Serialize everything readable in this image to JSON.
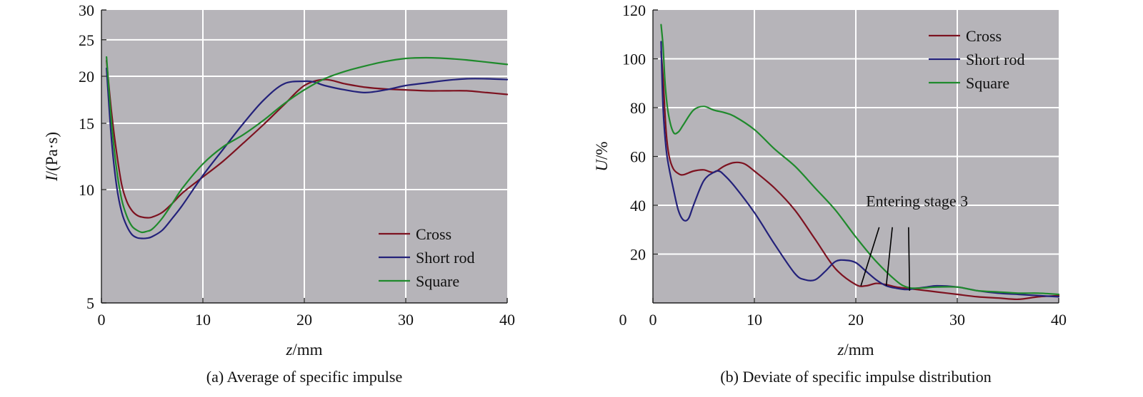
{
  "colors": {
    "Cross": "#7d1220",
    "Short rod": "#23217a",
    "Square": "#1f8a2c",
    "background": "#b6b4b9",
    "grid": "#ffffff"
  },
  "chart_data": [
    {
      "type": "line",
      "title": "(a) Average of specific impulse",
      "xlabel_italic": "z",
      "xlabel_rest": "/mm",
      "ylabel_italic": "I",
      "ylabel_rest": "/(Pa·s)",
      "xlim": [
        0,
        40
      ],
      "ylim": [
        5,
        30
      ],
      "yscale": "log",
      "xticks": [
        0,
        10,
        20,
        30,
        40
      ],
      "yticks": [
        5,
        10,
        15,
        20,
        25,
        30
      ],
      "grid_x": [
        10,
        20,
        30
      ],
      "grid_y": [
        10,
        15,
        20,
        25
      ],
      "legend": {
        "position": "bottom-right",
        "entries": [
          "Cross",
          "Short rod",
          "Square"
        ]
      },
      "series": [
        {
          "name": "Cross",
          "x": [
            0.5,
            1,
            1.5,
            2,
            2.5,
            3,
            3.5,
            4,
            4.5,
            5,
            6,
            7,
            8,
            10,
            12,
            14,
            16,
            18,
            20,
            22,
            24,
            26,
            28,
            30,
            32,
            34,
            36,
            38,
            40
          ],
          "y": [
            22,
            16,
            12.5,
            10.3,
            9.3,
            8.8,
            8.55,
            8.45,
            8.42,
            8.45,
            8.7,
            9.2,
            9.8,
            10.8,
            11.9,
            13.3,
            14.9,
            16.8,
            18.9,
            19.6,
            19.1,
            18.7,
            18.5,
            18.4,
            18.3,
            18.3,
            18.3,
            18.1,
            17.9
          ]
        },
        {
          "name": "Short rod",
          "x": [
            0.5,
            1,
            1.5,
            2,
            2.5,
            3,
            3.5,
            4,
            4.5,
            5,
            6,
            7,
            8,
            10,
            12,
            14,
            16,
            18,
            20,
            21,
            22,
            24,
            26,
            28,
            30,
            32,
            34,
            36,
            38,
            40
          ],
          "y": [
            21,
            13.5,
            10.2,
            8.7,
            8,
            7.6,
            7.45,
            7.42,
            7.43,
            7.5,
            7.8,
            8.4,
            9.1,
            10.9,
            12.8,
            15,
            17.3,
            19.1,
            19.4,
            19.3,
            18.9,
            18.4,
            18.1,
            18.4,
            18.9,
            19.2,
            19.5,
            19.7,
            19.7,
            19.6
          ]
        },
        {
          "name": "Square",
          "x": [
            0.5,
            1,
            1.5,
            2,
            2.5,
            3,
            3.5,
            4,
            4.5,
            5,
            6,
            7,
            8,
            10,
            12,
            14,
            16,
            18,
            20,
            22,
            24,
            26,
            28,
            30,
            32,
            34,
            36,
            38,
            40
          ],
          "y": [
            22.5,
            15,
            11.3,
            9.4,
            8.5,
            8,
            7.8,
            7.7,
            7.75,
            7.85,
            8.4,
            9.2,
            10.1,
            11.7,
            13,
            14,
            15.3,
            16.9,
            18.4,
            19.7,
            20.6,
            21.3,
            21.9,
            22.3,
            22.4,
            22.3,
            22.1,
            21.8,
            21.5
          ]
        }
      ]
    },
    {
      "type": "line",
      "title": "(b) Deviate of specific impulse distribution",
      "xlabel_italic": "z",
      "xlabel_rest": "/mm",
      "ylabel_italic": "U",
      "ylabel_rest": "/%",
      "xlim": [
        0,
        40
      ],
      "ylim": [
        0,
        120
      ],
      "xticks": [
        0,
        10,
        20,
        30,
        40
      ],
      "yticks": [
        20,
        40,
        60,
        80,
        100,
        120
      ],
      "grid_x": [
        10,
        20,
        30
      ],
      "grid_y": [
        20,
        40,
        60,
        80,
        100
      ],
      "legend": {
        "position": "top-right",
        "entries": [
          "Cross",
          "Short rod",
          "Square"
        ]
      },
      "annotation": {
        "text": "Entering stage 3",
        "x": 21,
        "y": 39.5,
        "arrows": [
          {
            "from": [
              22.3,
              31
            ],
            "to": [
              20.5,
              7
            ]
          },
          {
            "from": [
              23.6,
              31
            ],
            "to": [
              23,
              7
            ]
          },
          {
            "from": [
              25.2,
              31
            ],
            "to": [
              25.3,
              5
            ]
          }
        ]
      },
      "series": [
        {
          "name": "Cross",
          "x": [
            0.8,
            1,
            1.3,
            1.6,
            2,
            2.5,
            3,
            4,
            5,
            6,
            7,
            8,
            9,
            10,
            12,
            14,
            16,
            18,
            20,
            21,
            22,
            23,
            24,
            25,
            26,
            28,
            30,
            32,
            34,
            36,
            38,
            40
          ],
          "y": [
            103,
            92,
            70,
            60,
            55,
            53,
            52.5,
            54,
            54.5,
            53.5,
            56,
            57.5,
            57,
            54,
            47,
            38,
            26,
            14,
            7.5,
            7,
            8,
            7.5,
            6.5,
            6,
            5.5,
            4.5,
            3.5,
            2.5,
            2,
            1.5,
            2.5,
            3
          ]
        },
        {
          "name": "Short rod",
          "x": [
            0.8,
            1,
            1.3,
            1.6,
            2,
            2.5,
            3,
            3.5,
            4,
            5,
            6,
            6.5,
            7,
            8,
            10,
            12,
            14,
            15,
            16,
            17,
            18,
            19,
            20,
            21,
            22,
            23,
            24,
            25,
            26,
            27,
            28,
            30,
            32,
            34,
            36,
            38,
            40
          ],
          "y": [
            107,
            80,
            63,
            55,
            47,
            38,
            34,
            34.5,
            40,
            50,
            53.5,
            54,
            52.5,
            48,
            37,
            24,
            12,
            9.5,
            9.5,
            13,
            17,
            17.5,
            16.5,
            13,
            9.5,
            7,
            6,
            5.5,
            6,
            6.5,
            7,
            6.5,
            5,
            4,
            3.5,
            3,
            2.5
          ]
        },
        {
          "name": "Square",
          "x": [
            0.8,
            1,
            1.2,
            1.5,
            2,
            2.5,
            3,
            4,
            5,
            6,
            7,
            8,
            10,
            12,
            14,
            16,
            18,
            20,
            22,
            24,
            25,
            26,
            28,
            30,
            32,
            34,
            36,
            38,
            40
          ],
          "y": [
            114,
            105,
            90,
            78,
            70,
            70,
            73,
            79,
            80.5,
            79,
            78,
            76.5,
            71,
            63,
            56,
            47,
            38,
            27,
            17,
            9,
            6.5,
            6,
            6.5,
            6.5,
            5,
            4.5,
            4,
            4,
            3.5
          ]
        }
      ]
    }
  ]
}
